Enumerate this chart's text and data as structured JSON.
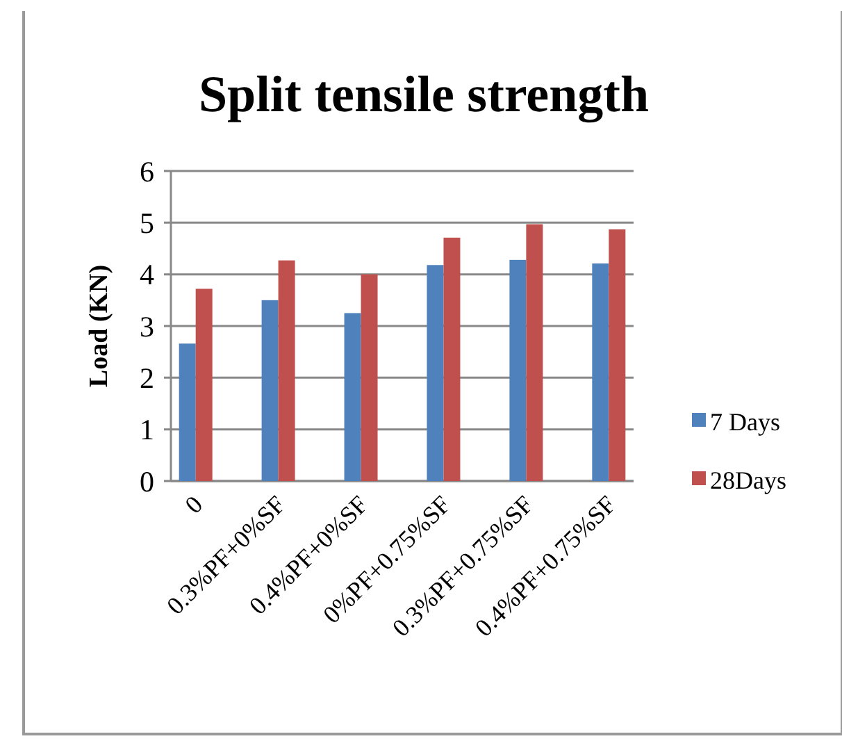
{
  "chart_data": {
    "type": "bar",
    "title": "Split tensile strength",
    "ylabel": "Load (KN)",
    "categories": [
      "0",
      "0.3%PF+0%SF",
      "0.4%PF+0%SF",
      "0%PF+0.75%SF",
      "0.3%PF+0.75%SF",
      "0.4%PF+0.75%SF"
    ],
    "series": [
      {
        "name": "7 Days",
        "color": "#4f81bd",
        "values": [
          2.66,
          3.5,
          3.25,
          4.18,
          4.28,
          4.21
        ]
      },
      {
        "name": "28Days",
        "color": "#c0504d",
        "values": [
          3.72,
          4.27,
          4.0,
          4.71,
          4.97,
          4.87
        ]
      }
    ],
    "ylim": [
      0,
      6
    ],
    "yticks": [
      0,
      1,
      2,
      3,
      4,
      5,
      6
    ],
    "grid": "y",
    "legend": "right"
  }
}
